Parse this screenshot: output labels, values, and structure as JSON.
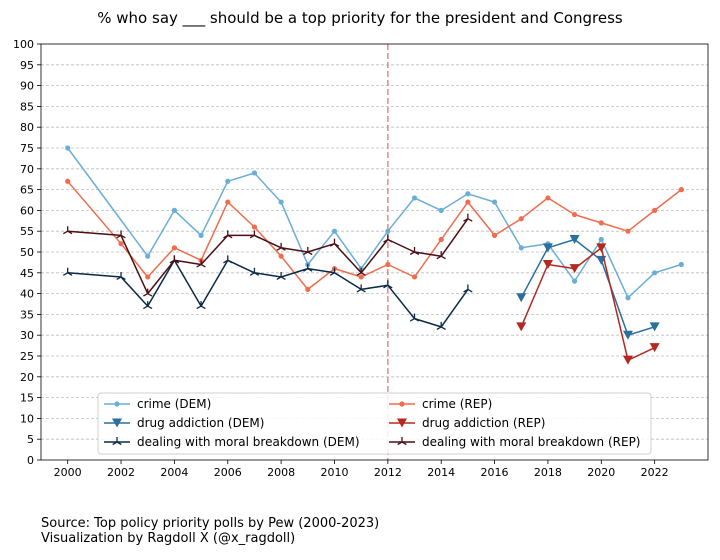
{
  "chart_data": {
    "type": "line",
    "title": "% who say ___ should be a top priority for the president and Congress",
    "xlim": [
      1999.0,
      2024.0
    ],
    "ylim": [
      0,
      100
    ],
    "x_ticks": [
      2000,
      2002,
      2004,
      2006,
      2008,
      2010,
      2012,
      2014,
      2016,
      2018,
      2020,
      2022
    ],
    "y_ticks": [
      0,
      5,
      10,
      15,
      20,
      25,
      30,
      35,
      40,
      45,
      50,
      55,
      60,
      65,
      70,
      75,
      80,
      85,
      90,
      95,
      100
    ],
    "grid": "horizontal dashed",
    "legend_position": "bottom-center",
    "reference_line": {
      "x": 2012,
      "color": "#e8888a",
      "style": "dashed"
    },
    "series": [
      {
        "name": "crime (DEM)",
        "color": "#6aaed6",
        "marker": "circle",
        "points": [
          [
            2000,
            75
          ],
          [
            2003,
            49
          ],
          [
            2004,
            60
          ],
          [
            2005,
            54
          ],
          [
            2006,
            67
          ],
          [
            2007,
            69
          ],
          [
            2008,
            62
          ],
          [
            2009,
            47
          ],
          [
            2010,
            55
          ],
          [
            2011,
            46
          ],
          [
            2012,
            55
          ],
          [
            2013,
            63
          ],
          [
            2014,
            60
          ],
          [
            2015,
            64
          ],
          [
            2016,
            62
          ],
          [
            2017,
            51
          ],
          [
            2018,
            52
          ],
          [
            2019,
            43
          ],
          [
            2020,
            53
          ],
          [
            2021,
            39
          ],
          [
            2022,
            45
          ],
          [
            2023,
            47
          ]
        ]
      },
      {
        "name": "crime (REP)",
        "color": "#f26b4c",
        "marker": "circle",
        "points": [
          [
            2000,
            67
          ],
          [
            2002,
            52
          ],
          [
            2003,
            44
          ],
          [
            2004,
            51
          ],
          [
            2005,
            48
          ],
          [
            2006,
            62
          ],
          [
            2007,
            56
          ],
          [
            2008,
            49
          ],
          [
            2009,
            41
          ],
          [
            2010,
            46
          ],
          [
            2011,
            44
          ],
          [
            2012,
            47
          ],
          [
            2013,
            44
          ],
          [
            2014,
            53
          ],
          [
            2015,
            62
          ],
          [
            2016,
            54
          ],
          [
            2017,
            58
          ],
          [
            2018,
            63
          ],
          [
            2019,
            59
          ],
          [
            2020,
            57
          ],
          [
            2021,
            55
          ],
          [
            2022,
            60
          ],
          [
            2023,
            65
          ]
        ]
      },
      {
        "name": "drug addiction (DEM)",
        "color": "#2a6f9e",
        "marker": "triangle-down",
        "points": [
          [
            2017,
            39
          ],
          [
            2018,
            51
          ],
          [
            2019,
            53
          ],
          [
            2020,
            48
          ],
          [
            2021,
            30
          ],
          [
            2022,
            32
          ]
        ]
      },
      {
        "name": "drug addiction (REP)",
        "color": "#b5281f",
        "marker": "triangle-down",
        "points": [
          [
            2017,
            32
          ],
          [
            2018,
            47
          ],
          [
            2019,
            46
          ],
          [
            2020,
            51
          ],
          [
            2021,
            24
          ],
          [
            2022,
            27
          ]
        ]
      },
      {
        "name": "dealing with moral breakdown (DEM)",
        "color": "#0b2a48",
        "marker": "tri",
        "points": [
          [
            2000,
            45
          ],
          [
            2002,
            44
          ],
          [
            2003,
            37
          ],
          [
            2004,
            48
          ],
          [
            2005,
            37
          ],
          [
            2006,
            48
          ],
          [
            2007,
            45
          ],
          [
            2008,
            44
          ],
          [
            2009,
            46
          ],
          [
            2010,
            45
          ],
          [
            2011,
            41
          ],
          [
            2012,
            42
          ],
          [
            2013,
            34
          ],
          [
            2014,
            32
          ],
          [
            2015,
            41
          ]
        ]
      },
      {
        "name": "dealing with moral breakdown (REP)",
        "color": "#4a0e14",
        "marker": "tri",
        "points": [
          [
            2000,
            55
          ],
          [
            2002,
            54
          ],
          [
            2003,
            40
          ],
          [
            2004,
            48
          ],
          [
            2005,
            47
          ],
          [
            2006,
            54
          ],
          [
            2007,
            54
          ],
          [
            2008,
            51
          ],
          [
            2009,
            50
          ],
          [
            2010,
            52
          ],
          [
            2011,
            45
          ],
          [
            2012,
            53
          ],
          [
            2013,
            50
          ],
          [
            2014,
            49
          ],
          [
            2015,
            58
          ]
        ]
      }
    ]
  },
  "source": {
    "line1": "Source: Top policy priority polls by Pew (2000-2023)",
    "line2": "Visualization by Ragdoll X (@x_ragdoll)"
  }
}
